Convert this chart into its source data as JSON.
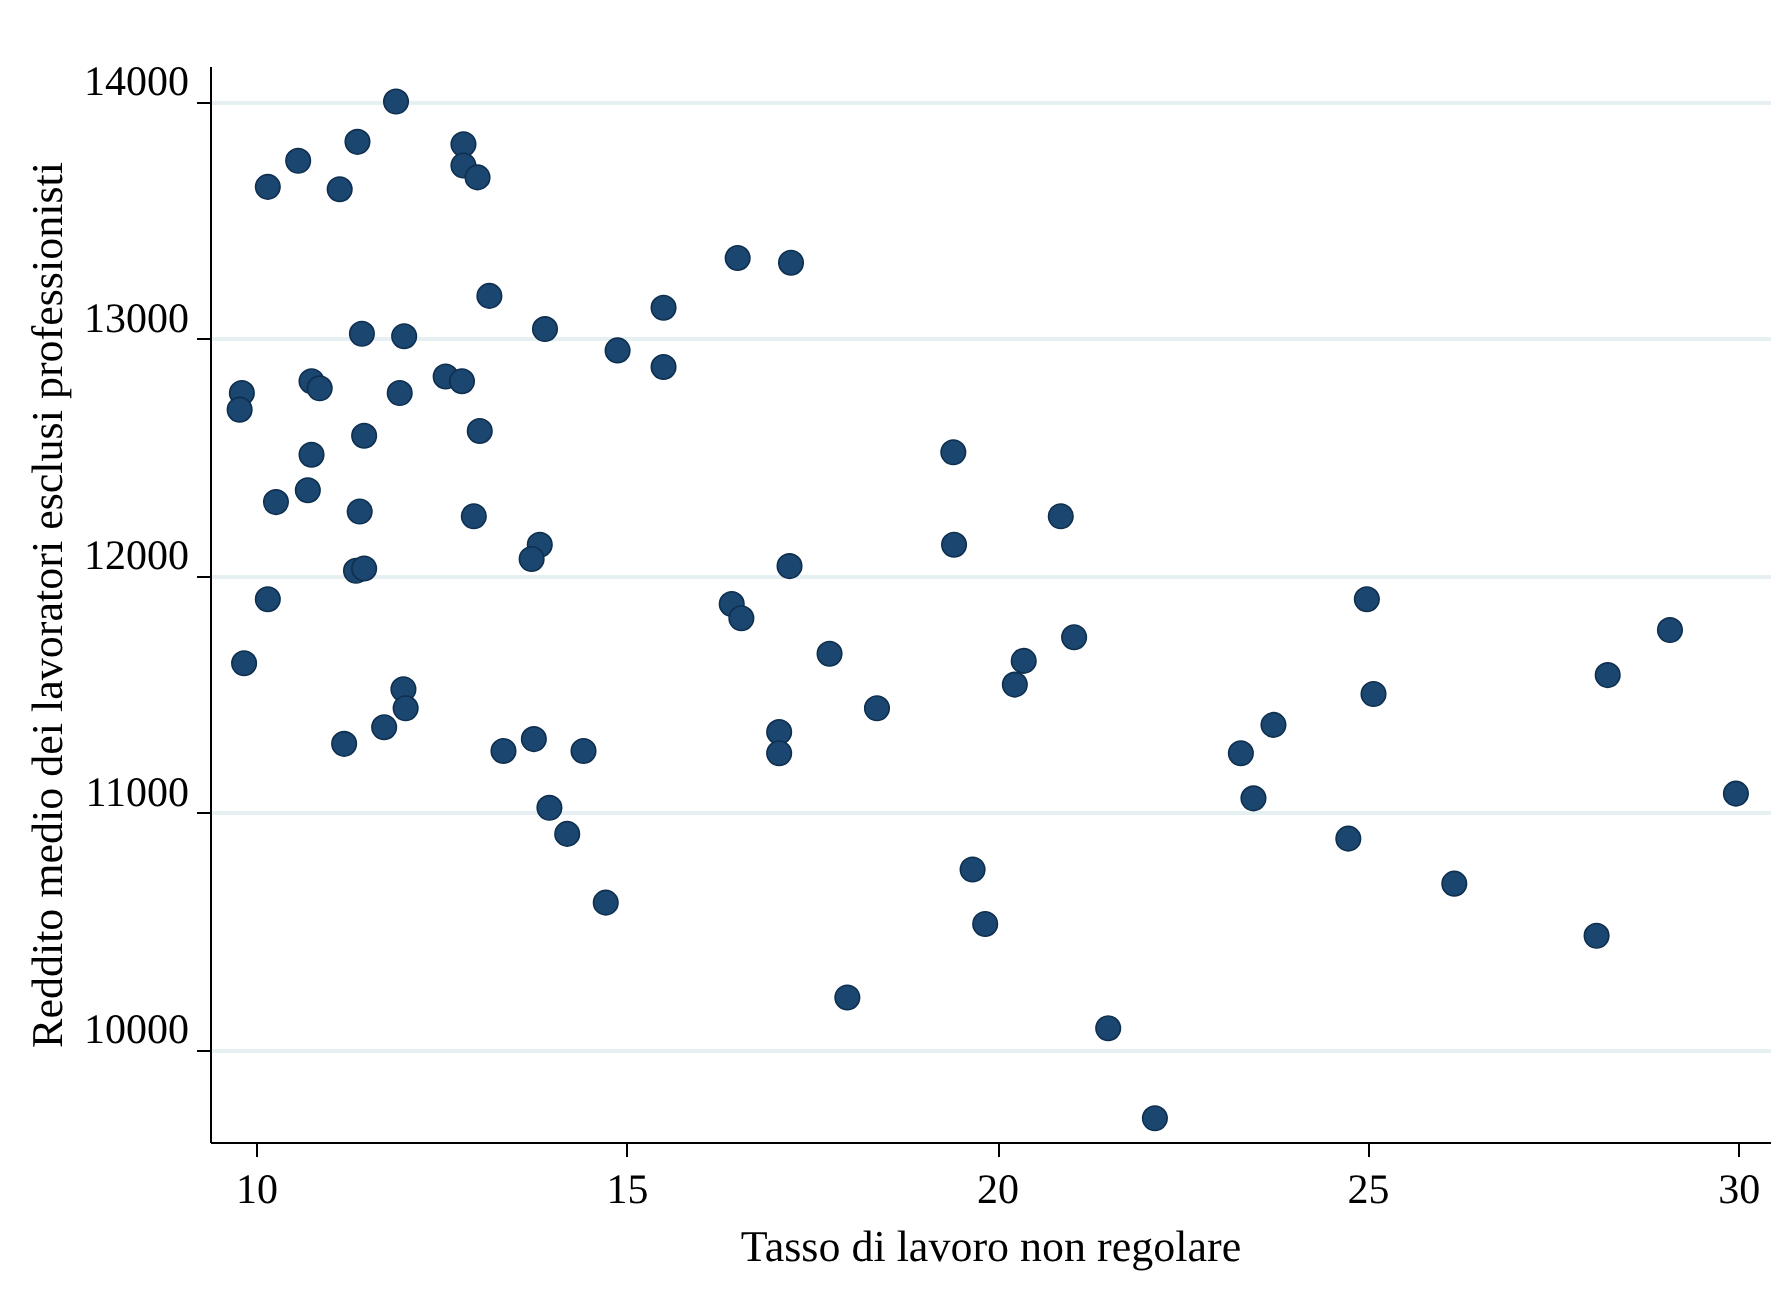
{
  "chart_data": {
    "type": "scatter",
    "xlabel": "Tasso di lavoro non regolare",
    "ylabel": "Reddito medio dei lavoratori esclusi professionisti",
    "xlim": [
      9.38,
      30.43
    ],
    "ylim": [
      9610,
      14150
    ],
    "xticks": [
      10,
      15,
      20,
      25,
      30
    ],
    "yticks": [
      10000,
      11000,
      12000,
      13000,
      14000
    ],
    "grid": "y",
    "marker": "circle",
    "series": [
      {
        "color": "#1a4670",
        "x": [
          11.89,
          11.37,
          10.57,
          10.16,
          11.13,
          12.8,
          12.8,
          12.99,
          16.5,
          17.22,
          13.15,
          15.5,
          11.43,
          12.0,
          13.9,
          14.88,
          15.5,
          9.81,
          9.78,
          10.75,
          10.86,
          11.94,
          12.56,
          12.78,
          11.46,
          13.02,
          10.75,
          10.7,
          10.27,
          11.4,
          12.94,
          13.83,
          13.72,
          11.35,
          11.46,
          17.2,
          10.16,
          16.42,
          16.55,
          17.74,
          9.84,
          11.99,
          12.02,
          11.19,
          11.73,
          13.34,
          13.75,
          14.42,
          13.96,
          14.2,
          14.72,
          17.98,
          17.06,
          17.06,
          18.38,
          19.41,
          19.42,
          20.86,
          24.99,
          29.08,
          20.36,
          21.04,
          20.24,
          25.08,
          28.24,
          23.73,
          23.29,
          23.46,
          29.97,
          24.74,
          19.67,
          26.17,
          19.84,
          28.09,
          21.5,
          22.13
        ],
        "values": [
          14000,
          13830,
          13750,
          13640,
          13630,
          13820,
          13730,
          13680,
          13340,
          13320,
          13180,
          13130,
          13020,
          13010,
          13040,
          12950,
          12880,
          12770,
          12700,
          12820,
          12790,
          12770,
          12840,
          12820,
          12590,
          12610,
          12510,
          12360,
          12310,
          12270,
          12250,
          12130,
          12070,
          12020,
          12030,
          12040,
          11900,
          11880,
          11820,
          11670,
          11630,
          11520,
          11440,
          11290,
          11360,
          11260,
          11310,
          11260,
          11020,
          10910,
          10620,
          10220,
          11340,
          11250,
          11440,
          12520,
          12130,
          12250,
          11900,
          11770,
          11640,
          11740,
          11540,
          11500,
          11580,
          11370,
          11250,
          11060,
          11080,
          10890,
          10760,
          10700,
          10530,
          10480,
          10090,
          9710
        ]
      }
    ]
  }
}
